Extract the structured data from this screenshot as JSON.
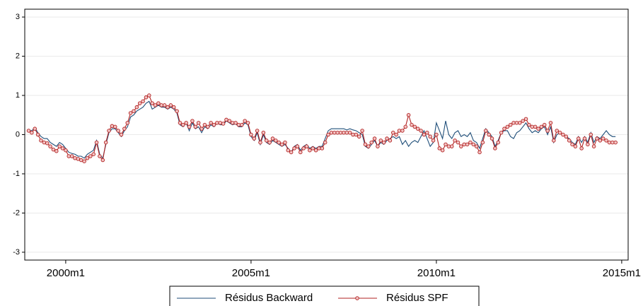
{
  "chart_data": {
    "type": "line",
    "x": [
      "1999m1",
      "1999m2",
      "1999m3",
      "1999m4",
      "1999m5",
      "1999m6",
      "1999m7",
      "1999m8",
      "1999m9",
      "1999m10",
      "1999m11",
      "1999m12",
      "2000m1",
      "2000m2",
      "2000m3",
      "2000m4",
      "2000m5",
      "2000m6",
      "2000m7",
      "2000m8",
      "2000m9",
      "2000m10",
      "2000m11",
      "2000m12",
      "2001m1",
      "2001m2",
      "2001m3",
      "2001m4",
      "2001m5",
      "2001m6",
      "2001m7",
      "2001m8",
      "2001m9",
      "2001m10",
      "2001m11",
      "2001m12",
      "2002m1",
      "2002m2",
      "2002m3",
      "2002m4",
      "2002m5",
      "2002m6",
      "2002m7",
      "2002m8",
      "2002m9",
      "2002m10",
      "2002m11",
      "2002m12",
      "2003m1",
      "2003m2",
      "2003m3",
      "2003m4",
      "2003m5",
      "2003m6",
      "2003m7",
      "2003m8",
      "2003m9",
      "2003m10",
      "2003m11",
      "2003m12",
      "2004m1",
      "2004m2",
      "2004m3",
      "2004m4",
      "2004m5",
      "2004m6",
      "2004m7",
      "2004m8",
      "2004m9",
      "2004m10",
      "2004m11",
      "2004m12",
      "2005m1",
      "2005m2",
      "2005m3",
      "2005m4",
      "2005m5",
      "2005m6",
      "2005m7",
      "2005m8",
      "2005m9",
      "2005m10",
      "2005m11",
      "2005m12",
      "2006m1",
      "2006m2",
      "2006m3",
      "2006m4",
      "2006m5",
      "2006m6",
      "2006m7",
      "2006m8",
      "2006m9",
      "2006m10",
      "2006m11",
      "2006m12",
      "2007m1",
      "2007m2",
      "2007m3",
      "2007m4",
      "2007m5",
      "2007m6",
      "2007m7",
      "2007m8",
      "2007m9",
      "2007m10",
      "2007m11",
      "2007m12",
      "2008m1",
      "2008m2",
      "2008m3",
      "2008m4",
      "2008m5",
      "2008m6",
      "2008m7",
      "2008m8",
      "2008m9",
      "2008m10",
      "2008m11",
      "2008m12",
      "2009m1",
      "2009m2",
      "2009m3",
      "2009m4",
      "2009m5",
      "2009m6",
      "2009m7",
      "2009m8",
      "2009m9",
      "2009m10",
      "2009m11",
      "2009m12",
      "2010m1",
      "2010m2",
      "2010m3",
      "2010m4",
      "2010m5",
      "2010m6",
      "2010m7",
      "2010m8",
      "2010m9",
      "2010m10",
      "2010m11",
      "2010m12",
      "2011m1",
      "2011m2",
      "2011m3",
      "2011m4",
      "2011m5",
      "2011m6",
      "2011m7",
      "2011m8",
      "2011m9",
      "2011m10",
      "2011m11",
      "2011m12",
      "2012m1",
      "2012m2",
      "2012m3",
      "2012m4",
      "2012m5",
      "2012m6",
      "2012m7",
      "2012m8",
      "2012m9",
      "2012m10",
      "2012m11",
      "2012m12",
      "2013m1",
      "2013m2",
      "2013m3",
      "2013m4",
      "2013m5",
      "2013m6",
      "2013m7",
      "2013m8",
      "2013m9",
      "2013m10",
      "2013m11",
      "2013m12",
      "2014m1",
      "2014m2",
      "2014m3",
      "2014m4",
      "2014m5",
      "2014m6",
      "2014m7",
      "2014m8",
      "2014m9",
      "2014m10",
      "2014m11"
    ],
    "series": [
      {
        "name": "Résidus Backward",
        "color": "#1f4e79",
        "marker": false,
        "values": [
          0.1,
          0.1,
          0.18,
          0.05,
          -0.05,
          -0.1,
          -0.1,
          -0.2,
          -0.25,
          -0.3,
          -0.2,
          -0.25,
          -0.35,
          -0.45,
          -0.48,
          -0.5,
          -0.55,
          -0.55,
          -0.6,
          -0.5,
          -0.45,
          -0.4,
          -0.15,
          -0.5,
          -0.6,
          -0.25,
          0.05,
          0.15,
          0.15,
          0.05,
          -0.05,
          0.1,
          0.2,
          0.45,
          0.5,
          0.6,
          0.65,
          0.7,
          0.8,
          0.85,
          0.65,
          0.7,
          0.75,
          0.7,
          0.7,
          0.65,
          0.7,
          0.65,
          0.55,
          0.25,
          0.2,
          0.3,
          0.1,
          0.3,
          0.15,
          0.2,
          0.05,
          0.2,
          0.15,
          0.25,
          0.2,
          0.3,
          0.25,
          0.25,
          0.35,
          0.3,
          0.25,
          0.28,
          0.2,
          0.2,
          0.3,
          0.25,
          -0.05,
          -0.15,
          0.05,
          -0.25,
          0.0,
          -0.2,
          -0.25,
          -0.15,
          -0.2,
          -0.25,
          -0.3,
          -0.25,
          -0.35,
          -0.45,
          -0.3,
          -0.25,
          -0.4,
          -0.3,
          -0.25,
          -0.35,
          -0.3,
          -0.35,
          -0.3,
          -0.3,
          -0.1,
          0.1,
          0.15,
          0.15,
          0.15,
          0.15,
          0.15,
          0.12,
          0.15,
          0.12,
          0.1,
          0.05,
          0.0,
          -0.3,
          -0.35,
          -0.25,
          -0.15,
          -0.3,
          -0.2,
          -0.25,
          -0.15,
          -0.1,
          -0.05,
          -0.1,
          -0.05,
          -0.25,
          -0.15,
          -0.3,
          -0.2,
          -0.15,
          -0.2,
          -0.05,
          0.1,
          -0.1,
          -0.3,
          -0.2,
          0.3,
          0.1,
          -0.1,
          0.35,
          0.0,
          -0.1,
          0.05,
          0.1,
          -0.05,
          0.0,
          -0.05,
          0.05,
          -0.15,
          -0.2,
          -0.35,
          -0.1,
          0.15,
          0.05,
          -0.05,
          -0.3,
          -0.15,
          0.05,
          0.1,
          0.1,
          -0.05,
          -0.1,
          0.05,
          0.1,
          0.2,
          0.3,
          0.15,
          0.05,
          0.1,
          0.05,
          0.15,
          0.2,
          0.0,
          0.2,
          -0.2,
          0.0,
          0.05,
          0.0,
          -0.05,
          -0.1,
          -0.2,
          -0.25,
          -0.05,
          -0.2,
          -0.05,
          -0.2,
          0.05,
          -0.2,
          -0.05,
          -0.1,
          0.0,
          0.1,
          0.0,
          -0.05,
          -0.05
        ]
      },
      {
        "name": "Résidus SPF",
        "color": "#b22222",
        "marker": true,
        "values": [
          0.1,
          0.05,
          0.15,
          0.0,
          -0.15,
          -0.2,
          -0.22,
          -0.3,
          -0.38,
          -0.42,
          -0.3,
          -0.35,
          -0.4,
          -0.55,
          -0.55,
          -0.6,
          -0.62,
          -0.65,
          -0.68,
          -0.6,
          -0.55,
          -0.5,
          -0.2,
          -0.55,
          -0.65,
          -0.2,
          0.1,
          0.22,
          0.2,
          0.1,
          0.0,
          0.15,
          0.3,
          0.55,
          0.6,
          0.7,
          0.8,
          0.85,
          0.95,
          1.0,
          0.8,
          0.75,
          0.8,
          0.75,
          0.75,
          0.7,
          0.75,
          0.7,
          0.6,
          0.3,
          0.25,
          0.3,
          0.2,
          0.35,
          0.2,
          0.3,
          0.15,
          0.25,
          0.2,
          0.3,
          0.25,
          0.3,
          0.3,
          0.28,
          0.38,
          0.35,
          0.3,
          0.3,
          0.25,
          0.25,
          0.35,
          0.3,
          0.0,
          -0.1,
          0.1,
          -0.2,
          0.05,
          -0.15,
          -0.2,
          -0.1,
          -0.15,
          -0.2,
          -0.25,
          -0.2,
          -0.4,
          -0.45,
          -0.35,
          -0.3,
          -0.45,
          -0.35,
          -0.3,
          -0.4,
          -0.35,
          -0.4,
          -0.35,
          -0.35,
          -0.2,
          0.0,
          0.05,
          0.05,
          0.05,
          0.05,
          0.05,
          0.05,
          0.05,
          0.0,
          0.0,
          -0.05,
          0.1,
          -0.25,
          -0.3,
          -0.2,
          -0.1,
          -0.3,
          -0.15,
          -0.2,
          -0.1,
          -0.15,
          0.05,
          0.0,
          0.1,
          0.1,
          0.2,
          0.5,
          0.25,
          0.2,
          0.15,
          0.1,
          0.0,
          0.05,
          -0.05,
          -0.15,
          0.0,
          -0.35,
          -0.4,
          -0.25,
          -0.3,
          -0.3,
          -0.15,
          -0.2,
          -0.3,
          -0.25,
          -0.25,
          -0.2,
          -0.25,
          -0.3,
          -0.45,
          -0.2,
          0.1,
          0.0,
          -0.1,
          -0.35,
          -0.2,
          0.05,
          0.15,
          0.2,
          0.25,
          0.3,
          0.3,
          0.3,
          0.35,
          0.4,
          0.25,
          0.2,
          0.2,
          0.15,
          0.2,
          0.25,
          0.1,
          0.3,
          -0.15,
          0.1,
          0.05,
          0.0,
          -0.05,
          -0.15,
          -0.25,
          -0.3,
          -0.1,
          -0.35,
          -0.1,
          -0.25,
          0.0,
          -0.3,
          -0.1,
          -0.15,
          -0.1,
          -0.15,
          -0.2,
          -0.2,
          -0.2
        ]
      }
    ],
    "ylim": [
      -3.2,
      3.2
    ],
    "yticks": [
      -3,
      -2,
      -1,
      0,
      1,
      2,
      3
    ],
    "xticks": [
      "2000m1",
      "2005m1",
      "2010m1",
      "2015m1"
    ],
    "grid": true,
    "legend": "bottom"
  }
}
